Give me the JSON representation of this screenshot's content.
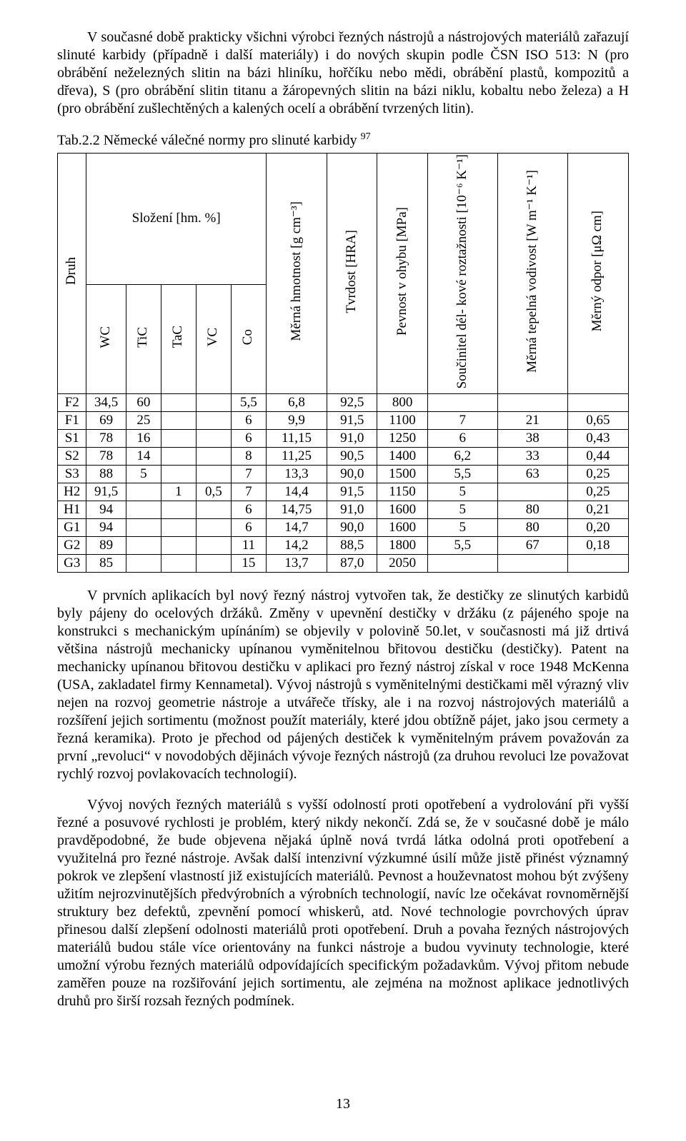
{
  "paragraphs": {
    "p1": "V současné době prakticky všichni výrobci řezných nástrojů a nástrojových materiálů zařazují slinuté karbidy (případně i další materiály) i do nových skupin podle ČSN ISO 513: N (pro obrábění neželezných slitin na bázi hliníku, hořčíku nebo mědi, obrábění plastů, kompozitů a dřeva), S (pro obrábění slitin titanu a žáropevných slitin na bázi niklu, kobaltu nebo železa) a H (pro obrábění zušlechtěných a kalených ocelí a obrábění tvrzených litin).",
    "p2": "V prvních aplikacích byl nový řezný nástroj vytvořen tak, že destičky ze slinutých karbidů byly pájeny do ocelových držáků. Změny v upevnění destičky v držáku (z pájeného spoje na konstrukci s mechanickým upínáním) se objevily v polovině 50.let, v současnosti má již drtivá většina nástrojů mechanicky upínanou vyměnitelnou břitovou destičku (destičky). Patent na mechanicky upínanou břitovou destičku v aplikaci pro řezný nástroj získal v roce 1948 McKenna (USA, zakladatel firmy Kennametal). Vývoj nástrojů s vyměnitelnými destičkami měl výrazný vliv nejen na rozvoj geometrie nástroje a utvářeče třísky, ale i na rozvoj nástrojových materiálů a rozšíření jejich sortimentu (možnost použít materiály, které jdou obtížně pájet, jako jsou cermety a řezná keramika). Proto je přechod od pájených destiček k vyměnitelným právem považován za první „revoluci“ v novodobých dějinách vývoje řezných nástrojů (za druhou revoluci lze považovat rychlý rozvoj povlakovacích technologií).",
    "p3": "Vývoj nových řezných materiálů s vyšší odolností proti opotřebení a vydrolování při vyšší řezné a posuvové rychlosti je problém, který nikdy nekončí. Zdá se, že v současné době je málo pravděpodobné, že bude objevena nějaká úplně nová tvrdá látka odolná proti opotřebení a využitelná pro řezné nástroje. Avšak další intenzivní výzkumné úsilí může jistě přinést významný pokrok ve zlepšení vlastností již existujících materiálů. Pevnost a houževnatost mohou být zvýšeny užitím nejrozvinutějších předvýrobních a výrobních technologií, navíc lze očekávat rovnoměrnější struktury bez defektů, zpevnění pomocí whiskerů, atd. Nové technologie povrchových úprav přinesou další zlepšení odolnosti materiálů proti opotřebení. Druh a povaha řezných nástrojových materiálů budou stále více orientovány na funkci nástroje a budou vyvinuty technologie, které umožní výrobu řezných materiálů odpovídajících specifickým požadavkům. Vývoj přitom nebude zaměřen pouze na rozšiřování jejich sortimentu, ale zejména na možnost aplikace jednotlivých druhů pro širší rozsah řezných podmínek."
  },
  "caption": {
    "prefix": "Tab.2.2 Německé válečné normy pro slinuté karbidy ",
    "sup": "97"
  },
  "table": {
    "headers": {
      "druh": "Druh",
      "slozeni": "Složení [hm. %]",
      "wc": "WC",
      "tic": "TiC",
      "tac": "TaC",
      "vc": "VC",
      "co": "Co",
      "hmotnost": "Měrná hmotnost [g cm⁻³]",
      "tvrdost": "Tvrdost [HRA]",
      "pevnost": "Pevnost v ohybu [MPa]",
      "soucinitel": "Součinitel dél- kové roztažnosti [10⁻⁶ K⁻¹]",
      "tepelna": "Měrná tepelná vodivost [W m⁻¹ K⁻¹]",
      "odpor": "Měrný odpor [μΩ cm]"
    },
    "rows": [
      {
        "druh": "F2",
        "wc": "34,5",
        "tic": "60",
        "tac": "",
        "vc": "",
        "co": "5,5",
        "hmot": "6,8",
        "tvrd": "92,5",
        "pevn": "800",
        "souc": "",
        "tep": "",
        "odp": ""
      },
      {
        "druh": "F1",
        "wc": "69",
        "tic": "25",
        "tac": "",
        "vc": "",
        "co": "6",
        "hmot": "9,9",
        "tvrd": "91,5",
        "pevn": "1100",
        "souc": "7",
        "tep": "21",
        "odp": "0,65"
      },
      {
        "druh": "S1",
        "wc": "78",
        "tic": "16",
        "tac": "",
        "vc": "",
        "co": "6",
        "hmot": "11,15",
        "tvrd": "91,0",
        "pevn": "1250",
        "souc": "6",
        "tep": "38",
        "odp": "0,43"
      },
      {
        "druh": "S2",
        "wc": "78",
        "tic": "14",
        "tac": "",
        "vc": "",
        "co": "8",
        "hmot": "11,25",
        "tvrd": "90,5",
        "pevn": "1400",
        "souc": "6,2",
        "tep": "33",
        "odp": "0,44"
      },
      {
        "druh": "S3",
        "wc": "88",
        "tic": "5",
        "tac": "",
        "vc": "",
        "co": "7",
        "hmot": "13,3",
        "tvrd": "90,0",
        "pevn": "1500",
        "souc": "5,5",
        "tep": "63",
        "odp": "0,25"
      },
      {
        "druh": "H2",
        "wc": "91,5",
        "tic": "",
        "tac": "1",
        "vc": "0,5",
        "co": "7",
        "hmot": "14,4",
        "tvrd": "91,5",
        "pevn": "1150",
        "souc": "5",
        "tep": "",
        "odp": "0,25"
      },
      {
        "druh": "H1",
        "wc": "94",
        "tic": "",
        "tac": "",
        "vc": "",
        "co": "6",
        "hmot": "14,75",
        "tvrd": "91,0",
        "pevn": "1600",
        "souc": "5",
        "tep": "80",
        "odp": "0,21"
      },
      {
        "druh": "G1",
        "wc": "94",
        "tic": "",
        "tac": "",
        "vc": "",
        "co": "6",
        "hmot": "14,7",
        "tvrd": "90,0",
        "pevn": "1600",
        "souc": "5",
        "tep": "80",
        "odp": "0,20"
      },
      {
        "druh": "G2",
        "wc": "89",
        "tic": "",
        "tac": "",
        "vc": "",
        "co": "11",
        "hmot": "14,2",
        "tvrd": "88,5",
        "pevn": "1800",
        "souc": "5,5",
        "tep": "67",
        "odp": "0,18"
      },
      {
        "druh": "G3",
        "wc": "85",
        "tic": "",
        "tac": "",
        "vc": "",
        "co": "15",
        "hmot": "13,7",
        "tvrd": "87,0",
        "pevn": "2050",
        "souc": "",
        "tep": "",
        "odp": ""
      }
    ]
  },
  "pagenum": "13"
}
